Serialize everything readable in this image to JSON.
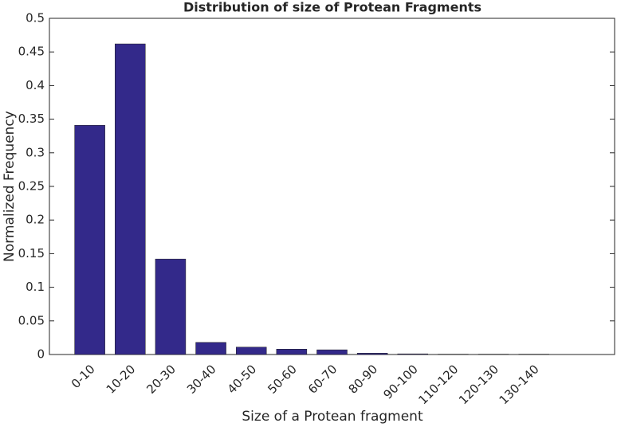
{
  "chart_data": {
    "type": "bar",
    "title": "Distribution of size of Protean Fragments",
    "x_label": "Size of a Protean fragment",
    "y_label": "Normalized Frequency",
    "categories": [
      "0-10",
      "10-20",
      "20-30",
      "30-40",
      "40-50",
      "50-60",
      "60-70",
      "80-90",
      "90-100",
      "110-120",
      "120-130",
      "130-140"
    ],
    "values": [
      0.341,
      0.462,
      0.142,
      0.018,
      0.011,
      0.008,
      0.007,
      0.002,
      0.001,
      0.0005,
      0.0005,
      0.0005
    ],
    "color": "#33298a",
    "xlim": [
      0,
      14
    ],
    "ylim": [
      0,
      0.5
    ],
    "yticks": [
      0,
      0.05,
      0.1,
      0.15,
      0.2,
      0.25,
      0.3,
      0.35,
      0.4,
      0.45,
      0.5
    ],
    "grid": false
  }
}
